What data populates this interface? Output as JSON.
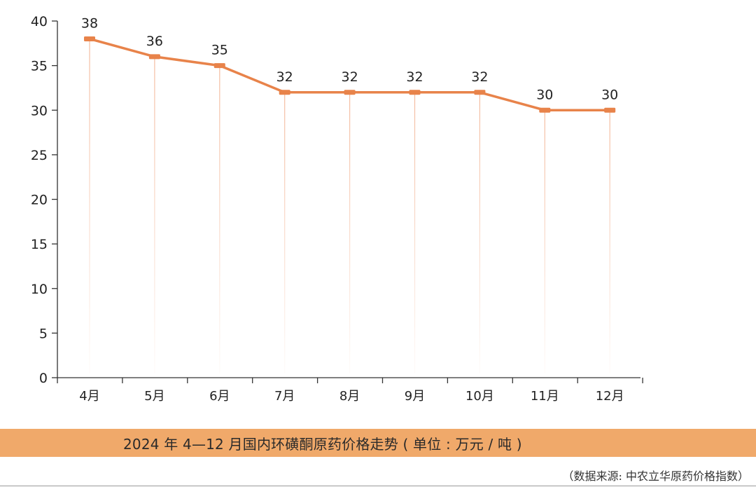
{
  "chart_data": {
    "type": "line",
    "categories": [
      "4月",
      "5月",
      "6月",
      "7月",
      "8月",
      "9月",
      "10月",
      "11月",
      "12月"
    ],
    "values": [
      38,
      36,
      35,
      32,
      32,
      32,
      32,
      30,
      30
    ],
    "data_labels": [
      "38",
      "36",
      "35",
      "32",
      "32",
      "32",
      "32",
      "30",
      "30"
    ],
    "ylim": [
      0,
      40
    ],
    "yticks": [
      0,
      5,
      10,
      15,
      20,
      25,
      30,
      35,
      40
    ],
    "ytick_labels": [
      "0",
      "5",
      "10",
      "15",
      "20",
      "25",
      "30",
      "35",
      "40"
    ],
    "grid": false,
    "drop_lines": true,
    "line_color": "#e8834a",
    "drop_line_color": "#f3b89a",
    "axis_color": "#333333"
  },
  "caption": {
    "title": "2024 年 4—12 月国内环磺酮原药价格走势 ( 单位 : 万元 / 吨 )",
    "source": "（数据来源: 中农立华原药价格指数）",
    "band_color": "#f0a96a"
  }
}
